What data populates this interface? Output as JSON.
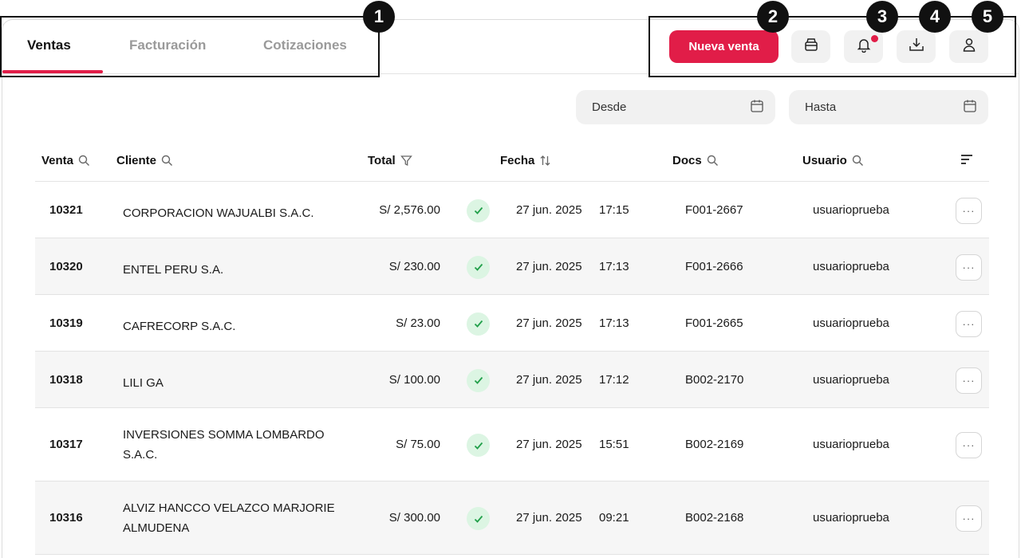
{
  "tabs": [
    {
      "label": "Ventas",
      "active": true
    },
    {
      "label": "Facturación",
      "active": false
    },
    {
      "label": "Cotizaciones",
      "active": false
    }
  ],
  "actions": {
    "new_sale_label": "Nueva venta",
    "icons": [
      "cash-register-icon",
      "bell-icon",
      "download-icon",
      "user-icon"
    ],
    "notification_dot": true
  },
  "filters": {
    "from_label": "Desde",
    "to_label": "Hasta"
  },
  "table": {
    "columns": [
      "Venta",
      "Cliente",
      "Total",
      "Fecha",
      "Docs",
      "Usuario"
    ],
    "rows": [
      {
        "venta": "10321",
        "cliente": "CORPORACION WAJUALBI S.A.C.",
        "total": "S/ 2,576.00",
        "fecha": "27 jun. 2025",
        "hora": "17:15",
        "docs": "F001-2667",
        "usuario": "usuarioprueba"
      },
      {
        "venta": "10320",
        "cliente": "ENTEL PERU S.A.",
        "total": "S/ 230.00",
        "fecha": "27 jun. 2025",
        "hora": "17:13",
        "docs": "F001-2666",
        "usuario": "usuarioprueba"
      },
      {
        "venta": "10319",
        "cliente": "CAFRECORP S.A.C.",
        "total": "S/ 23.00",
        "fecha": "27 jun. 2025",
        "hora": "17:13",
        "docs": "F001-2665",
        "usuario": "usuarioprueba"
      },
      {
        "venta": "10318",
        "cliente": "LILI GA",
        "total": "S/ 100.00",
        "fecha": "27 jun. 2025",
        "hora": "17:12",
        "docs": "B002-2170",
        "usuario": "usuarioprueba"
      },
      {
        "venta": "10317",
        "cliente": "INVERSIONES SOMMA LOMBARDO S.A.C.",
        "total": "S/ 75.00",
        "fecha": "27 jun. 2025",
        "hora": "15:51",
        "docs": "B002-2169",
        "usuario": "usuarioprueba"
      },
      {
        "venta": "10316",
        "cliente": "ALVIZ HANCCO VELAZCO MARJORIE ALMUDENA",
        "total": "S/ 300.00",
        "fecha": "27 jun. 2025",
        "hora": "09:21",
        "docs": "B002-2168",
        "usuario": "usuarioprueba"
      }
    ]
  },
  "callouts": [
    "1",
    "2",
    "3",
    "4",
    "5"
  ],
  "colors": {
    "accent": "#e11d48",
    "success_bg": "#dcf5e3",
    "success": "#22a04b"
  }
}
